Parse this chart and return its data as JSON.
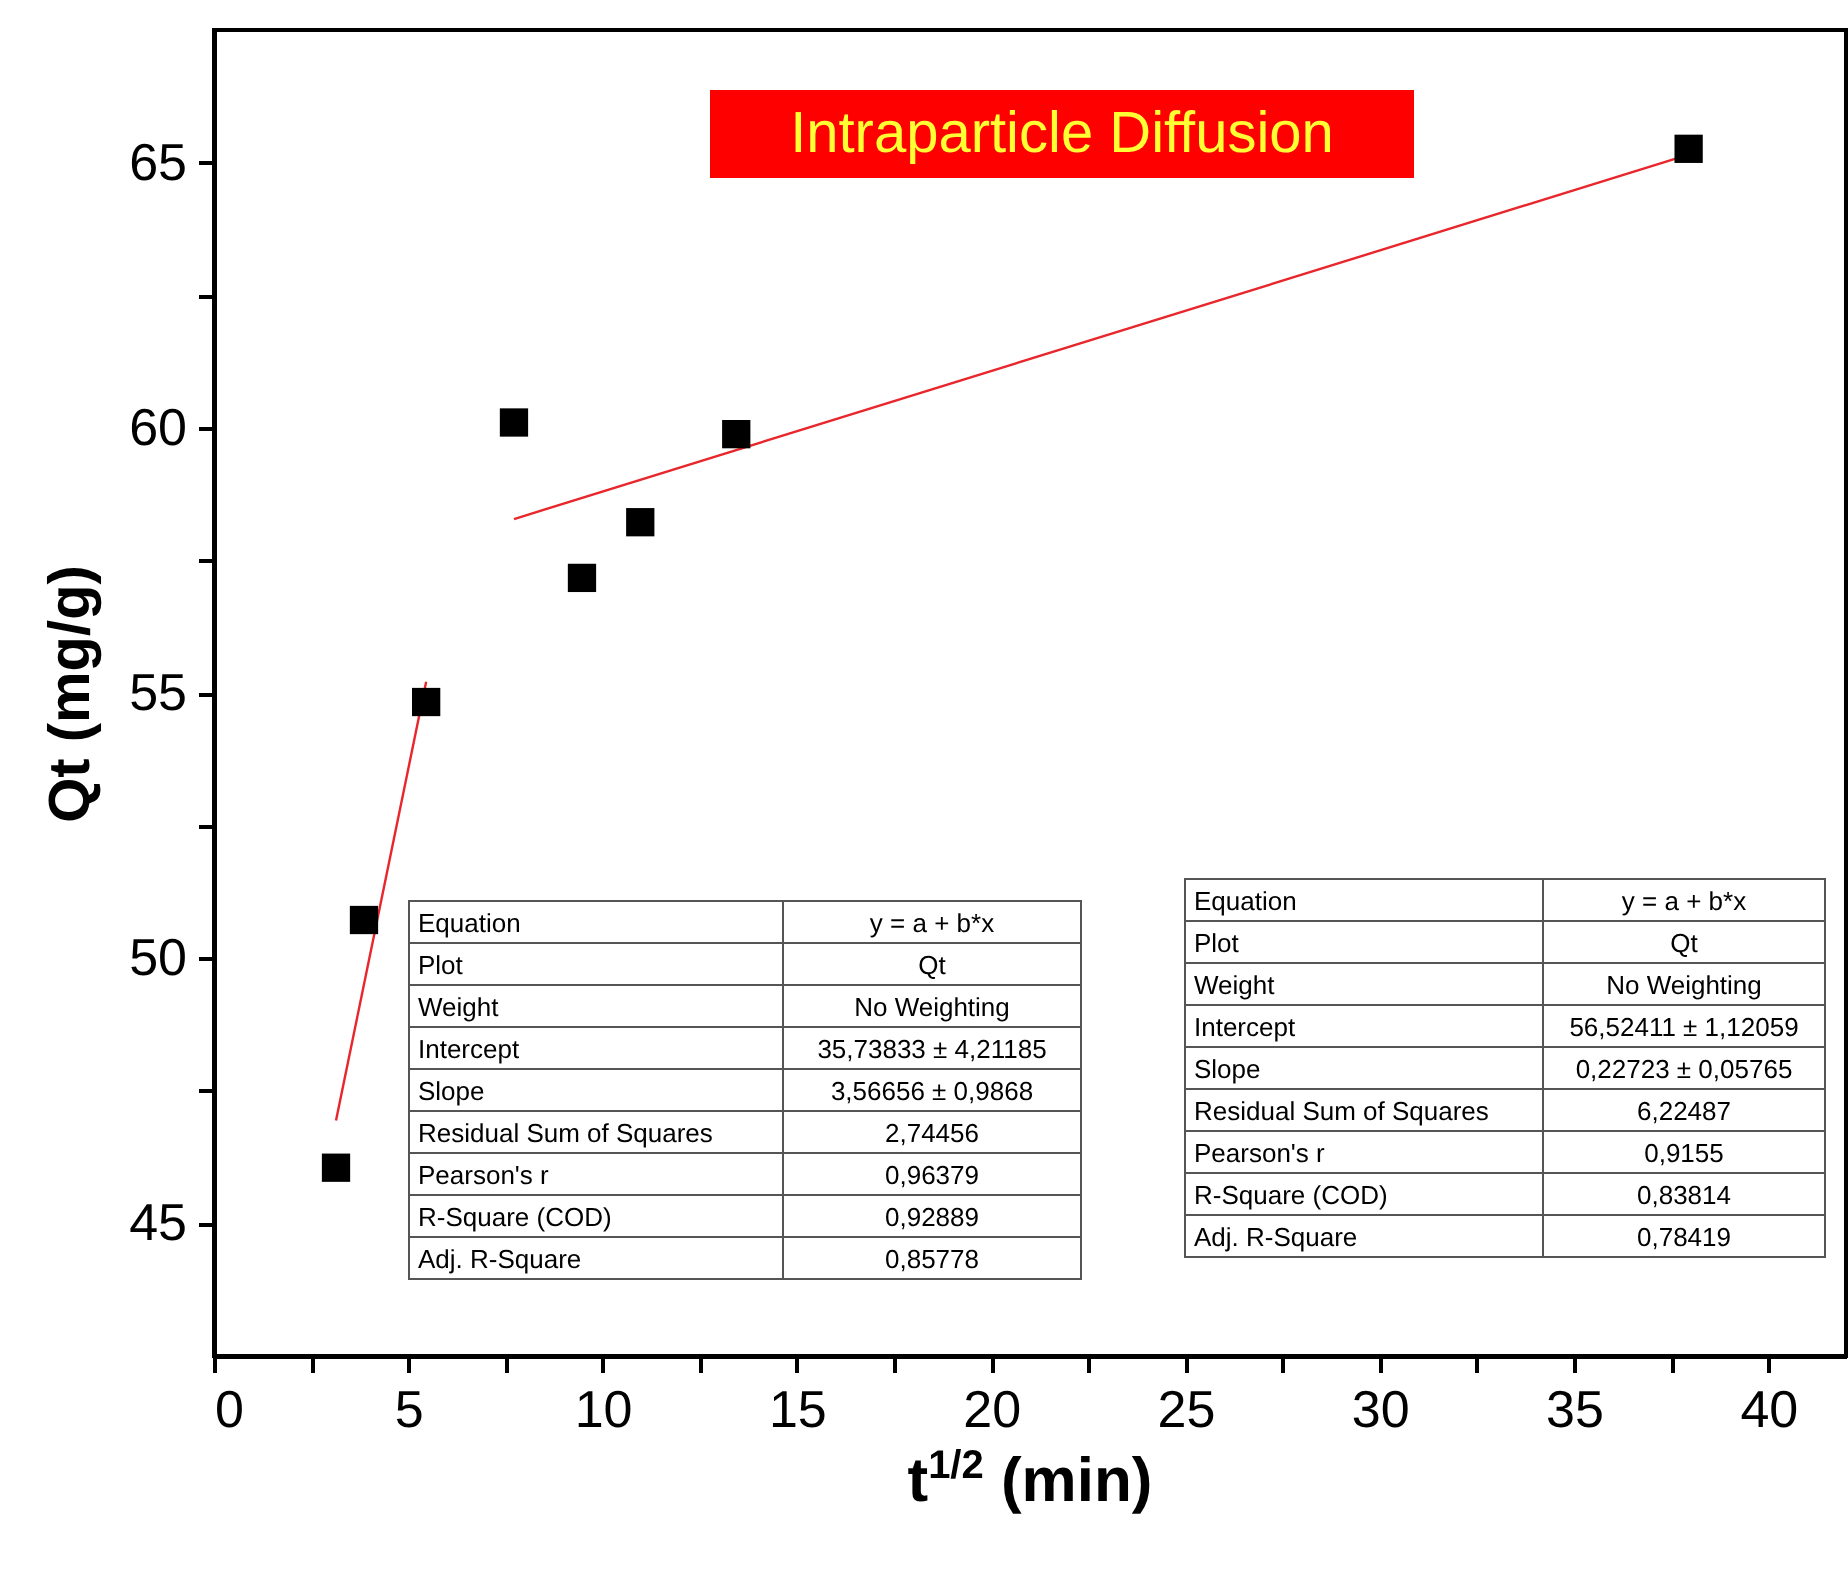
{
  "chart_data": {
    "type": "scatter",
    "title": "Intraparticle Diffusion",
    "xlabel": "t$^{1/2}$ (min)",
    "ylabel": "Qt (mg/g)",
    "xlim": [
      0,
      42
    ],
    "ylim": [
      42.5,
      67.5
    ],
    "xticks": [
      0,
      {
        "value": 2.5,
        "label": null
      },
      5,
      {
        "value": 7.5,
        "label": null
      },
      10,
      {
        "value": 12.5,
        "label": null
      },
      15,
      {
        "value": 17.5,
        "label": null
      },
      20,
      {
        "value": 22.5,
        "label": null
      },
      25,
      {
        "value": 27.5,
        "label": null
      },
      30,
      {
        "value": 32.5,
        "label": null
      },
      35,
      {
        "value": 37.5,
        "label": null
      },
      40
    ],
    "yticks": [
      45,
      {
        "value": 47.5,
        "label": null
      },
      50,
      {
        "value": 52.5,
        "label": null
      },
      55,
      {
        "value": 57.5,
        "label": null
      },
      60,
      {
        "value": 62.5,
        "label": null
      },
      65
    ],
    "series": [
      {
        "marker": "square",
        "color": "#000000",
        "x": [
          3.14,
          3.86,
          5.46,
          7.72,
          9.47,
          10.97,
          13.44,
          37.95
        ],
        "values": [
          46.05,
          50.72,
          54.83,
          60.1,
          57.17,
          58.22,
          59.88,
          65.26
        ]
      },
      {
        "type": "line",
        "marker": "none",
        "color": "#e8262b",
        "x": [
          3.14,
          5.46
        ],
        "values": [
          46.94,
          55.21
        ]
      },
      {
        "type": "line",
        "marker": "none",
        "color": "#e8262b",
        "x": [
          7.72,
          37.95
        ],
        "values": [
          58.28,
          65.15
        ]
      }
    ],
    "annotations": [
      "Equation",
      "y = a + b*x",
      "Plot",
      "Qt",
      "Weight",
      "No Weighting",
      "Intercept",
      "35,73833 ± 4,21185",
      "Slope",
      "3,56656 ± 0,9868",
      "Residual Sum of Squares",
      "2,74456",
      "Pearson's r",
      "0,96379",
      "R-Square (COD)",
      "0,92889",
      "Adj. R-Square",
      "0,85778",
      "Equation",
      "y = a + b*x",
      "Plot",
      "Qt",
      "Weight",
      "No Weighting",
      "Intercept",
      "56,52411 ± 1,12059",
      "Slope",
      "0,22723 ± 0,05765",
      "Residual Sum of Squares",
      "6,22487",
      "Pearson's r",
      "0,9155",
      "R-Square (COD)",
      "0,83814",
      "Adj. R-Square",
      "0,78419"
    ]
  }
}
